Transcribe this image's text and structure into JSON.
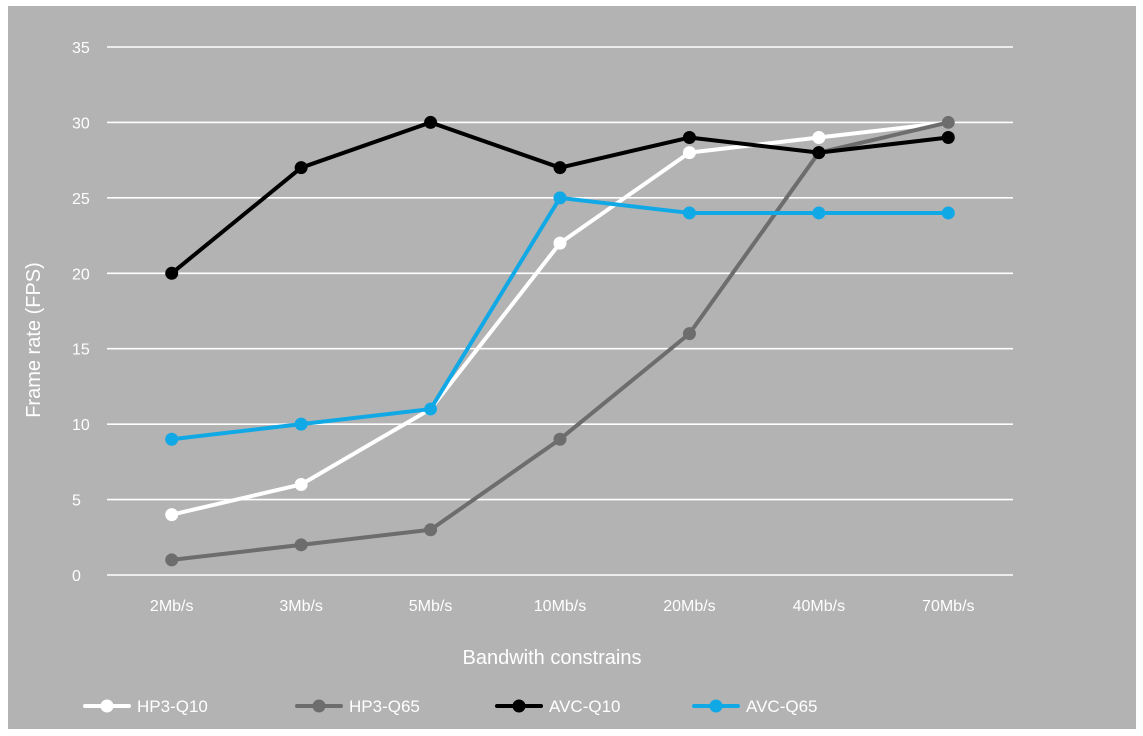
{
  "chart_data": {
    "type": "line",
    "categories": [
      "2Mb/s",
      "3Mb/s",
      "5Mb/s",
      "10Mb/s",
      "20Mb/s",
      "40Mb/s",
      "70Mb/s"
    ],
    "xlabel": "Bandwith constrains",
    "ylabel": "Frame rate (FPS)",
    "ylim": [
      0,
      35
    ],
    "yticks": [
      0,
      5,
      10,
      15,
      20,
      25,
      30,
      35
    ],
    "grid": true,
    "legend_position": "bottom",
    "background_color": "#b3b3b3",
    "series": [
      {
        "name": "HP3-Q10",
        "color": "#ffffff",
        "values": [
          4,
          6,
          11,
          22,
          28,
          29,
          30
        ]
      },
      {
        "name": "HP3-Q65",
        "color": "#6d6d6d",
        "values": [
          1,
          2,
          3,
          9,
          16,
          28,
          30
        ]
      },
      {
        "name": "AVC-Q10",
        "color": "#000000",
        "values": [
          20,
          27,
          30,
          27,
          29,
          28,
          29
        ]
      },
      {
        "name": "AVC-Q65",
        "color": "#11a8e6",
        "values": [
          9,
          10,
          11,
          25,
          24,
          24,
          24
        ]
      }
    ]
  }
}
